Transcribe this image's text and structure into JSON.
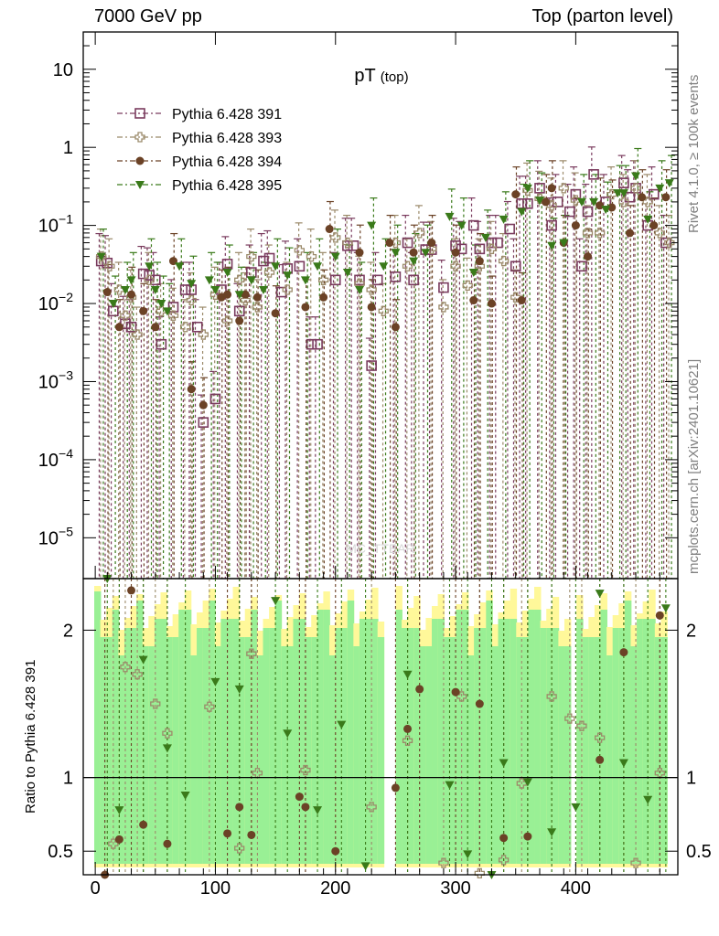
{
  "header": {
    "left": "7000 GeV pp",
    "right": "Top (parton level)"
  },
  "side_labels": {
    "rivet": "Rivet 4.1.0, ≥ 100k events",
    "mcplots": "mcplots.cern.ch [arXiv:2401.10621]"
  },
  "watermark": "MC_TTBAR",
  "chart_data": {
    "type": "scatter",
    "title": "pT",
    "title_sub": "(top)",
    "xlabel": "",
    "ylabel": "",
    "ratio_ylabel": "Ratio to Pythia 6.428 391",
    "xlim": [
      -10,
      485
    ],
    "ylim_log": [
      3e-06,
      30
    ],
    "ratio_ylim": [
      0.34,
      2.35
    ],
    "x_ticks": [
      0,
      100,
      200,
      300,
      400
    ],
    "x_tick_labels": [
      "0",
      "100",
      "200",
      "300",
      "400"
    ],
    "y_ticks": [
      10,
      1,
      0.1,
      0.01,
      0.001,
      0.0001,
      1e-05
    ],
    "y_tick_labels": [
      {
        "base": "10",
        "exp": ""
      },
      {
        "base": "1",
        "exp": ""
      },
      {
        "base": "10",
        "exp": "−1"
      },
      {
        "base": "10",
        "exp": "−2"
      },
      {
        "base": "10",
        "exp": "−3"
      },
      {
        "base": "10",
        "exp": "−4"
      },
      {
        "base": "10",
        "exp": "−5"
      }
    ],
    "ratio_ticks": [
      0.5,
      1,
      2
    ],
    "ratio_tick_labels": [
      "0.5",
      "1",
      "2"
    ],
    "legend_position": "top-left",
    "series": [
      {
        "name": "Pythia 6.428 391",
        "color": "#7a3b5e",
        "marker": "open-square",
        "points": [
          [
            5,
            0.035
          ],
          [
            10,
            0.033
          ],
          [
            15,
            0.008
          ],
          [
            25,
            0.0055
          ],
          [
            30,
            0.005
          ],
          [
            40,
            0.024
          ],
          [
            45,
            0.023
          ],
          [
            50,
            0.02
          ],
          [
            55,
            0.003
          ],
          [
            65,
            0.009
          ],
          [
            75,
            0.015
          ],
          [
            80,
            0.015
          ],
          [
            85,
            0.005
          ],
          [
            90,
            0.0003
          ],
          [
            100,
            0.0006
          ],
          [
            105,
            0.015
          ],
          [
            110,
            0.032
          ],
          [
            120,
            0.008
          ],
          [
            130,
            0.025
          ],
          [
            140,
            0.035
          ],
          [
            145,
            0.038
          ],
          [
            155,
            0.014
          ],
          [
            160,
            0.028
          ],
          [
            170,
            0.03
          ],
          [
            180,
            0.003
          ],
          [
            185,
            0.003
          ],
          [
            200,
            0.02
          ],
          [
            210,
            0.055
          ],
          [
            215,
            0.055
          ],
          [
            220,
            0.02
          ],
          [
            230,
            0.0016
          ],
          [
            235,
            0.02
          ],
          [
            250,
            0.022
          ],
          [
            260,
            0.06
          ],
          [
            265,
            0.02
          ],
          [
            275,
            0.049
          ],
          [
            280,
            0.049
          ],
          [
            290,
            0.016
          ],
          [
            300,
            0.055
          ],
          [
            305,
            0.05
          ],
          [
            315,
            0.1
          ],
          [
            320,
            0.05
          ],
          [
            330,
            0.06
          ],
          [
            335,
            0.06
          ],
          [
            345,
            0.09
          ],
          [
            350,
            0.03
          ],
          [
            355,
            0.19
          ],
          [
            360,
            0.19
          ],
          [
            370,
            0.3
          ],
          [
            380,
            0.1
          ],
          [
            385,
            0.2
          ],
          [
            395,
            0.15
          ],
          [
            400,
            0.25
          ],
          [
            405,
            0.03
          ],
          [
            410,
            0.15
          ],
          [
            415,
            0.45
          ],
          [
            425,
            0.2
          ],
          [
            440,
            0.35
          ],
          [
            445,
            0.23
          ],
          [
            450,
            0.3
          ],
          [
            460,
            0.1
          ],
          [
            465,
            0.25
          ],
          [
            475,
            0.06
          ]
        ]
      },
      {
        "name": "Pythia 6.428 393",
        "color": "#9b8a6a",
        "marker": "open-cross",
        "points": [
          [
            5,
            0.04
          ],
          [
            12,
            0.03
          ],
          [
            20,
            0.015
          ],
          [
            25,
            0.007
          ],
          [
            30,
            0.012
          ],
          [
            35,
            0.004
          ],
          [
            45,
            0.02
          ],
          [
            55,
            0.008
          ],
          [
            65,
            0.007
          ],
          [
            75,
            0.005
          ],
          [
            80,
            0.011
          ],
          [
            90,
            0.004
          ],
          [
            100,
            0.013
          ],
          [
            110,
            0.006
          ],
          [
            120,
            0.02
          ],
          [
            125,
            0.011
          ],
          [
            130,
            0.04
          ],
          [
            135,
            0.009
          ],
          [
            145,
            0.025
          ],
          [
            160,
            0.015
          ],
          [
            170,
            0.048
          ],
          [
            180,
            0.04
          ],
          [
            190,
            0.02
          ],
          [
            200,
            0.07
          ],
          [
            210,
            0.06
          ],
          [
            220,
            0.018
          ],
          [
            230,
            0.015
          ],
          [
            240,
            0.008
          ],
          [
            250,
            0.06
          ],
          [
            260,
            0.03
          ],
          [
            270,
            0.08
          ],
          [
            280,
            0.05
          ],
          [
            290,
            0.009
          ],
          [
            300,
            0.03
          ],
          [
            310,
            0.017
          ],
          [
            320,
            0.03
          ],
          [
            330,
            0.05
          ],
          [
            340,
            0.035
          ],
          [
            350,
            0.012
          ],
          [
            360,
            0.28
          ],
          [
            370,
            0.22
          ],
          [
            380,
            0.18
          ],
          [
            390,
            0.3
          ],
          [
            400,
            0.21
          ],
          [
            410,
            0.08
          ],
          [
            420,
            0.08
          ],
          [
            430,
            0.25
          ],
          [
            440,
            0.2
          ],
          [
            450,
            0.3
          ],
          [
            460,
            0.2
          ],
          [
            470,
            0.08
          ],
          [
            478,
            0.06
          ]
        ]
      },
      {
        "name": "Pythia 6.428 394",
        "color": "#6b4226",
        "marker": "filled-circle",
        "points": [
          [
            10,
            0.014
          ],
          [
            20,
            0.005
          ],
          [
            30,
            0.013
          ],
          [
            40,
            0.008
          ],
          [
            50,
            0.005
          ],
          [
            65,
            0.035
          ],
          [
            80,
            0.0008
          ],
          [
            90,
            0.0005
          ],
          [
            105,
            0.012
          ],
          [
            110,
            0.013
          ],
          [
            120,
            0.006
          ],
          [
            125,
            0.013
          ],
          [
            135,
            0.012
          ],
          [
            150,
            0.0075
          ],
          [
            175,
            0.009
          ],
          [
            190,
            0.012
          ],
          [
            195,
            0.09
          ],
          [
            220,
            0.045
          ],
          [
            230,
            0.009
          ],
          [
            245,
            0.06
          ],
          [
            250,
            0.005
          ],
          [
            265,
            0.045
          ],
          [
            280,
            0.06
          ],
          [
            300,
            0.045
          ],
          [
            315,
            0.011
          ],
          [
            320,
            0.035
          ],
          [
            330,
            0.01
          ],
          [
            350,
            0.25
          ],
          [
            355,
            0.011
          ],
          [
            375,
            0.2
          ],
          [
            380,
            0.3
          ],
          [
            390,
            0.06
          ],
          [
            400,
            0.1
          ],
          [
            410,
            0.04
          ],
          [
            420,
            0.18
          ],
          [
            430,
            0.17
          ],
          [
            445,
            0.08
          ],
          [
            455,
            0.23
          ],
          [
            465,
            0.1
          ],
          [
            475,
            0.23
          ]
        ]
      },
      {
        "name": "Pythia 6.428 395",
        "color": "#3a7a1a",
        "marker": "filled-triangle-down",
        "points": [
          [
            5,
            0.04
          ],
          [
            15,
            0.01
          ],
          [
            25,
            0.015
          ],
          [
            30,
            0.02
          ],
          [
            45,
            0.03
          ],
          [
            50,
            0.015
          ],
          [
            55,
            0.01
          ],
          [
            60,
            0.008
          ],
          [
            70,
            0.03
          ],
          [
            80,
            0.018
          ],
          [
            95,
            0.02
          ],
          [
            100,
            0.015
          ],
          [
            110,
            0.025
          ],
          [
            120,
            0.013
          ],
          [
            130,
            0.02
          ],
          [
            140,
            0.015
          ],
          [
            150,
            0.03
          ],
          [
            160,
            0.023
          ],
          [
            175,
            0.02
          ],
          [
            185,
            0.03
          ],
          [
            200,
            0.04
          ],
          [
            210,
            0.025
          ],
          [
            220,
            0.015
          ],
          [
            230,
            0.1
          ],
          [
            240,
            0.03
          ],
          [
            250,
            0.045
          ],
          [
            265,
            0.035
          ],
          [
            275,
            0.045
          ],
          [
            295,
            0.13
          ],
          [
            305,
            0.1
          ],
          [
            315,
            0.025
          ],
          [
            325,
            0.07
          ],
          [
            340,
            0.12
          ],
          [
            355,
            0.15
          ],
          [
            360,
            0.3
          ],
          [
            370,
            0.21
          ],
          [
            380,
            0.055
          ],
          [
            390,
            0.06
          ],
          [
            405,
            0.2
          ],
          [
            415,
            0.2
          ],
          [
            425,
            0.16
          ],
          [
            435,
            0.26
          ],
          [
            440,
            0.26
          ],
          [
            450,
            0.43
          ],
          [
            460,
            0.12
          ],
          [
            470,
            0.3
          ],
          [
            478,
            0.35
          ]
        ]
      }
    ],
    "ratio_points": [
      {
        "series": 1,
        "points": [
          [
            15,
            0.55
          ],
          [
            25,
            1.75
          ],
          [
            35,
            1.7
          ],
          [
            50,
            1.5
          ],
          [
            60,
            1.3
          ],
          [
            95,
            1.48
          ],
          [
            120,
            0.52
          ],
          [
            130,
            1.84
          ],
          [
            135,
            1.03
          ],
          [
            175,
            1.05
          ],
          [
            230,
            0.8
          ],
          [
            260,
            1.25
          ],
          [
            290,
            0.42
          ],
          [
            305,
            1.55
          ],
          [
            320,
            0.35
          ],
          [
            340,
            0.44
          ],
          [
            355,
            0.96
          ],
          [
            380,
            1.55
          ],
          [
            395,
            1.4
          ],
          [
            405,
            1.35
          ],
          [
            420,
            1.27
          ],
          [
            450,
            0.42
          ],
          [
            470,
            1.03
          ]
        ]
      },
      {
        "series": 2,
        "points": [
          [
            8,
            0.34
          ],
          [
            20,
            0.58
          ],
          [
            30,
            2.27
          ],
          [
            40,
            0.68
          ],
          [
            60,
            0.55
          ],
          [
            110,
            0.62
          ],
          [
            120,
            0.8
          ],
          [
            130,
            0.61
          ],
          [
            170,
            0.87
          ],
          [
            175,
            0.8
          ],
          [
            200,
            0.5
          ],
          [
            250,
            0.93
          ],
          [
            260,
            1.33
          ],
          [
            270,
            1.6
          ],
          [
            300,
            1.58
          ],
          [
            320,
            1.5
          ],
          [
            340,
            0.59
          ],
          [
            360,
            0.6
          ],
          [
            420,
            1.12
          ],
          [
            440,
            1.85
          ],
          [
            470,
            2.1
          ]
        ]
      },
      {
        "series": 3,
        "points": [
          [
            10,
            2.35
          ],
          [
            20,
            0.78
          ],
          [
            40,
            1.8
          ],
          [
            60,
            1.2
          ],
          [
            75,
            0.88
          ],
          [
            100,
            1.65
          ],
          [
            120,
            1.6
          ],
          [
            150,
            2.2
          ],
          [
            160,
            1.3
          ],
          [
            185,
            0.78
          ],
          [
            205,
            1.36
          ],
          [
            225,
            0.4
          ],
          [
            260,
            1.7
          ],
          [
            295,
            0.95
          ],
          [
            310,
            0.48
          ],
          [
            330,
            0.3
          ],
          [
            340,
            1.1
          ],
          [
            360,
            0.97
          ],
          [
            380,
            0.63
          ],
          [
            400,
            0.8
          ],
          [
            420,
            2.25
          ],
          [
            440,
            1.1
          ],
          [
            460,
            0.85
          ],
          [
            475,
            2.15
          ]
        ]
      }
    ]
  }
}
